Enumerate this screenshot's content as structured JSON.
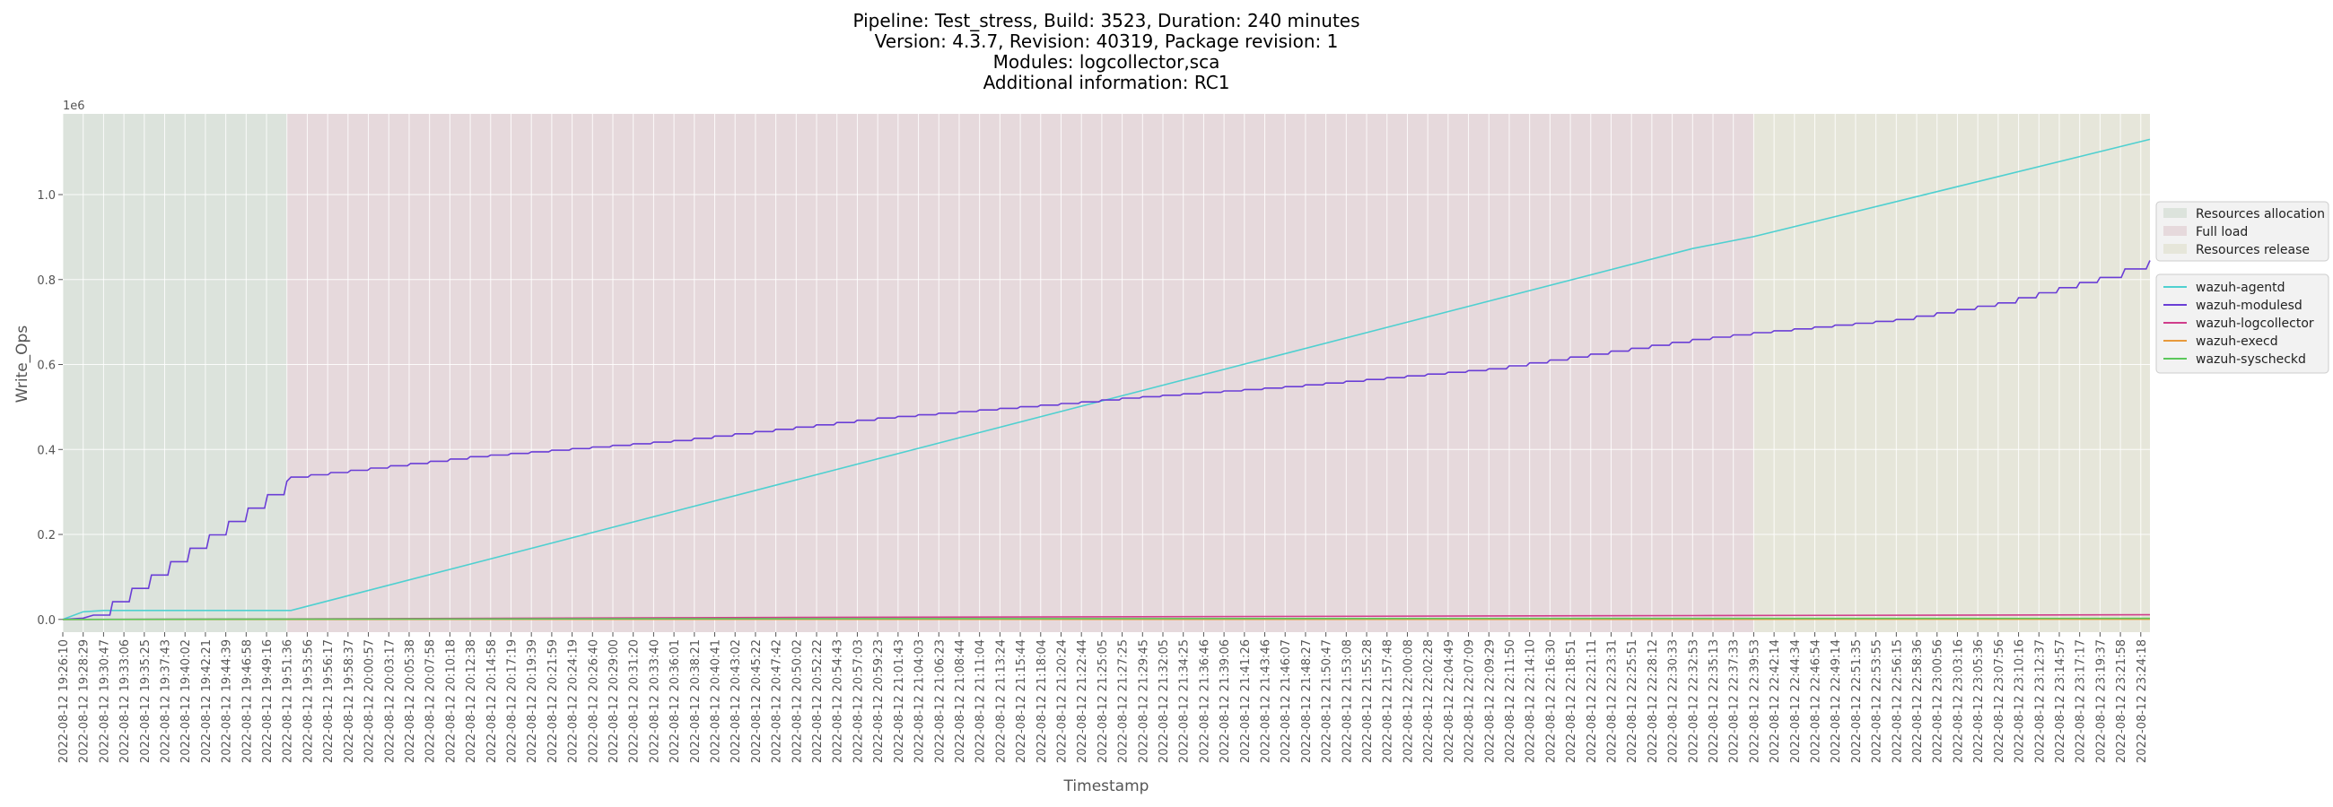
{
  "chart_data": {
    "type": "line",
    "title_lines": [
      "Pipeline: Test_stress, Build: 3523, Duration: 240 minutes",
      "Version: 4.3.7, Revision: 40319, Package revision: 1",
      "Modules: logcollector,sca",
      "Additional information: RC1"
    ],
    "xlabel": "Timestamp",
    "ylabel": "Write_Ops",
    "y_offset_text": "1e6",
    "ylim": [
      -0.03,
      1.19
    ],
    "y_ticks": [
      "0.0",
      "0.2",
      "0.4",
      "0.6",
      "0.8",
      "1.0"
    ],
    "y_tick_values": [
      0.0,
      0.2,
      0.4,
      0.6,
      0.8,
      1.0
    ],
    "grid": true,
    "legend_position": "right",
    "phases": [
      {
        "name": "Resources allocation",
        "start": "2022-08-12 19:26:10",
        "end": "2022-08-12 19:51:36",
        "color": "#dce3dc"
      },
      {
        "name": "Full load",
        "start": "2022-08-12 19:51:36",
        "end": "2022-08-12 22:39:53",
        "color": "#e6d9dc"
      },
      {
        "name": "Resources release",
        "start": "2022-08-12 22:39:53",
        "end": "2022-08-12 23:25:20",
        "color": "#e6e6da"
      }
    ],
    "x_ticks": [
      "2022-08-12 19:26:10",
      "2022-08-12 19:28:29",
      "2022-08-12 19:30:47",
      "2022-08-12 19:33:06",
      "2022-08-12 19:35:25",
      "2022-08-12 19:37:43",
      "2022-08-12 19:40:02",
      "2022-08-12 19:42:21",
      "2022-08-12 19:44:39",
      "2022-08-12 19:46:58",
      "2022-08-12 19:49:16",
      "2022-08-12 19:51:36",
      "2022-08-12 19:53:56",
      "2022-08-12 19:56:17",
      "2022-08-12 19:58:37",
      "2022-08-12 20:00:57",
      "2022-08-12 20:03:17",
      "2022-08-12 20:05:38",
      "2022-08-12 20:07:58",
      "2022-08-12 20:10:18",
      "2022-08-12 20:12:38",
      "2022-08-12 20:14:58",
      "2022-08-12 20:17:19",
      "2022-08-12 20:19:39",
      "2022-08-12 20:21:59",
      "2022-08-12 20:24:19",
      "2022-08-12 20:26:40",
      "2022-08-12 20:29:00",
      "2022-08-12 20:31:20",
      "2022-08-12 20:33:40",
      "2022-08-12 20:36:01",
      "2022-08-12 20:38:21",
      "2022-08-12 20:40:41",
      "2022-08-12 20:43:02",
      "2022-08-12 20:45:22",
      "2022-08-12 20:47:42",
      "2022-08-12 20:50:02",
      "2022-08-12 20:52:22",
      "2022-08-12 20:54:43",
      "2022-08-12 20:57:03",
      "2022-08-12 20:59:23",
      "2022-08-12 21:01:43",
      "2022-08-12 21:04:03",
      "2022-08-12 21:06:23",
      "2022-08-12 21:08:44",
      "2022-08-12 21:11:04",
      "2022-08-12 21:13:24",
      "2022-08-12 21:15:44",
      "2022-08-12 21:18:04",
      "2022-08-12 21:20:24",
      "2022-08-12 21:22:44",
      "2022-08-12 21:25:05",
      "2022-08-12 21:27:25",
      "2022-08-12 21:29:45",
      "2022-08-12 21:32:05",
      "2022-08-12 21:34:25",
      "2022-08-12 21:36:46",
      "2022-08-12 21:39:06",
      "2022-08-12 21:41:26",
      "2022-08-12 21:43:46",
      "2022-08-12 21:46:07",
      "2022-08-12 21:48:27",
      "2022-08-12 21:50:47",
      "2022-08-12 21:53:08",
      "2022-08-12 21:55:28",
      "2022-08-12 21:57:48",
      "2022-08-12 22:00:08",
      "2022-08-12 22:02:28",
      "2022-08-12 22:04:49",
      "2022-08-12 22:07:09",
      "2022-08-12 22:09:29",
      "2022-08-12 22:11:50",
      "2022-08-12 22:14:10",
      "2022-08-12 22:16:30",
      "2022-08-12 22:18:51",
      "2022-08-12 22:21:11",
      "2022-08-12 22:23:31",
      "2022-08-12 22:25:51",
      "2022-08-12 22:28:12",
      "2022-08-12 22:30:33",
      "2022-08-12 22:32:53",
      "2022-08-12 22:35:13",
      "2022-08-12 22:37:33",
      "2022-08-12 22:39:53",
      "2022-08-12 22:42:14",
      "2022-08-12 22:44:34",
      "2022-08-12 22:46:54",
      "2022-08-12 22:49:14",
      "2022-08-12 22:51:35",
      "2022-08-12 22:53:55",
      "2022-08-12 22:56:15",
      "2022-08-12 22:58:36",
      "2022-08-12 23:00:56",
      "2022-08-12 23:03:16",
      "2022-08-12 23:05:36",
      "2022-08-12 23:07:56",
      "2022-08-12 23:10:16",
      "2022-08-12 23:12:37",
      "2022-08-12 23:14:57",
      "2022-08-12 23:17:17",
      "2022-08-12 23:19:37",
      "2022-08-12 23:21:58",
      "2022-08-12 23:24:18"
    ],
    "x_max_tick_index": 102.45,
    "series": [
      {
        "name": "wazuh-agentd",
        "color": "#4fd0d0",
        "x": [
          0,
          1,
          2,
          10,
          11,
          11.2,
          50,
          80,
          83,
          102.45
        ],
        "y": [
          0.0,
          0.018,
          0.021,
          0.021,
          0.021,
          0.021,
          0.502,
          0.873,
          0.901,
          1.13
        ]
      },
      {
        "name": "wazuh-modulesd",
        "color": "#6a3ed6",
        "x": [
          0,
          1,
          1.5,
          11,
          11.2,
          20,
          30,
          40,
          50,
          52,
          60,
          70,
          80,
          83,
          90,
          95,
          100,
          102.45
        ],
        "y": [
          0.0,
          0.003,
          0.01,
          0.325,
          0.335,
          0.383,
          0.421,
          0.474,
          0.512,
          0.521,
          0.548,
          0.59,
          0.659,
          0.675,
          0.706,
          0.745,
          0.805,
          0.845
        ],
        "step": true
      },
      {
        "name": "wazuh-logcollector",
        "color": "#d03d8b",
        "x": [
          0,
          11,
          30,
          50,
          80,
          102.45
        ],
        "y": [
          0.0,
          0.001,
          0.004,
          0.006,
          0.009,
          0.011
        ]
      },
      {
        "name": "wazuh-execd",
        "color": "#e89a3c",
        "x": [
          0,
          102.45
        ],
        "y": [
          0.0,
          0.0003
        ]
      },
      {
        "name": "wazuh-syscheckd",
        "color": "#5bc85b",
        "x": [
          0,
          30,
          60,
          102.45
        ],
        "y": [
          0.0,
          0.0015,
          0.002,
          0.0025
        ]
      }
    ]
  }
}
